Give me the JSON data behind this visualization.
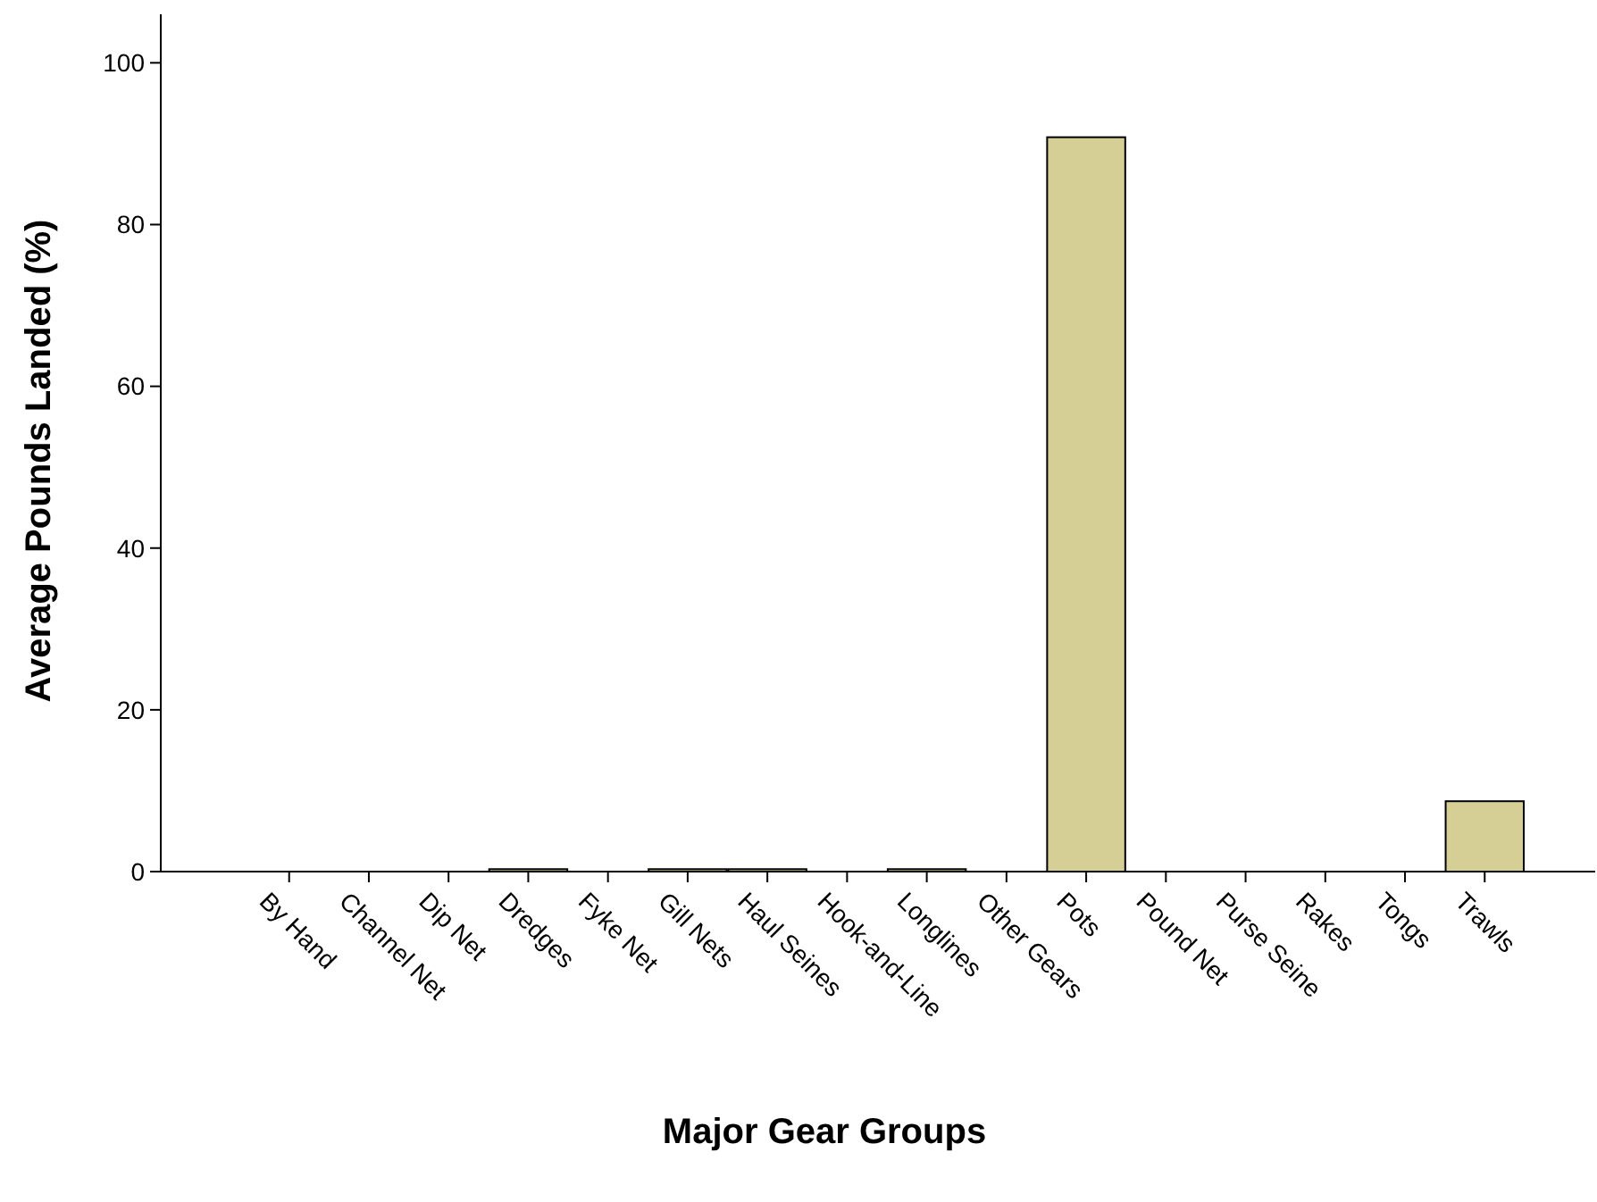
{
  "chart_data": {
    "type": "bar",
    "xlabel": "Major Gear Groups",
    "ylabel": "Average Pounds Landed (%)",
    "categories": [
      "By Hand",
      "Channel Net",
      "Dip Net",
      "Dredges",
      "Fyke Net",
      "Gill Nets",
      "Haul Seines",
      "Hook-and-Line",
      "Longlines",
      "Other Gears",
      "Pots",
      "Pound Net",
      "Purse Seine",
      "Rakes",
      "Tongs",
      "Trawls"
    ],
    "values": [
      0,
      0,
      0,
      0.3,
      0,
      0.3,
      0.3,
      0,
      0.3,
      0,
      90.8,
      0,
      0,
      0,
      0,
      8.7
    ],
    "color": "#d5cf96",
    "ylim": [
      0,
      106
    ],
    "yticks": [
      0,
      20,
      40,
      60,
      80,
      100
    ],
    "grid": false
  }
}
